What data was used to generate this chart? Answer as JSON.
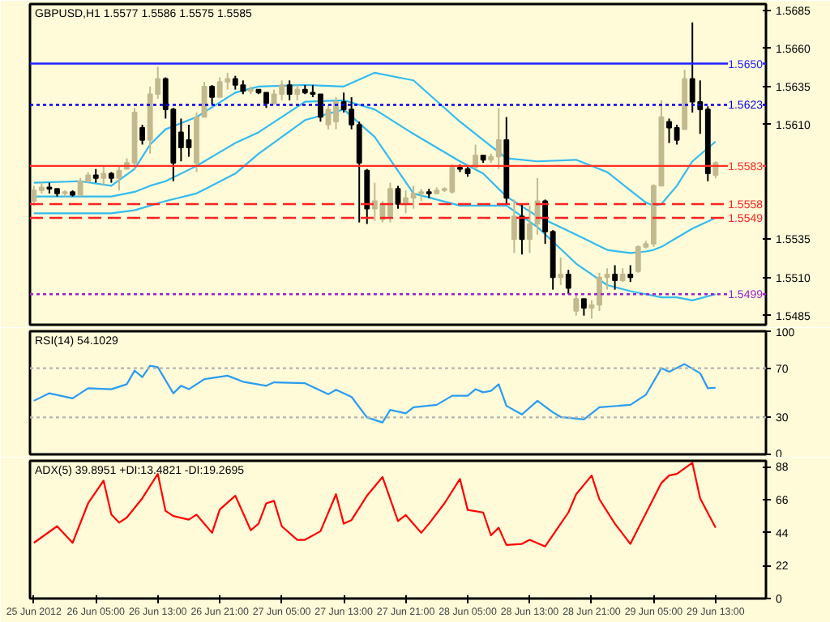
{
  "chart_data": [
    {
      "type": "candlestick",
      "title": "GBPUSD,H1 1.5577 1.5586 1.5575 1.5585",
      "grid": false,
      "tick_labels": "y",
      "x": [
        "2012-06-25T21:00",
        "2012-06-25T22:00",
        "2012-06-25T23:00",
        "2012-06-26T00:00",
        "2012-06-26T01:00",
        "2012-06-26T02:00",
        "2012-06-26T03:00",
        "2012-06-26T04:00",
        "2012-06-26T05:00",
        "2012-06-26T06:00",
        "2012-06-26T07:00",
        "2012-06-26T08:00",
        "2012-06-26T09:00",
        "2012-06-26T10:00",
        "2012-06-26T11:00",
        "2012-06-26T12:00",
        "2012-06-26T13:00",
        "2012-06-26T14:00",
        "2012-06-26T15:00",
        "2012-06-26T16:00",
        "2012-06-26T17:00",
        "2012-06-26T18:00",
        "2012-06-26T19:00",
        "2012-06-26T20:00",
        "2012-06-26T21:00",
        "2012-06-26T22:00",
        "2012-06-26T23:00",
        "2012-06-27T00:00",
        "2012-06-27T01:00",
        "2012-06-27T02:00",
        "2012-06-27T03:00",
        "2012-06-27T04:00",
        "2012-06-27T05:00",
        "2012-06-27T06:00",
        "2012-06-27T07:00",
        "2012-06-27T08:00",
        "2012-06-27T09:00",
        "2012-06-27T10:00",
        "2012-06-27T11:00",
        "2012-06-27T12:00",
        "2012-06-27T13:00",
        "2012-06-27T14:00",
        "2012-06-27T15:00",
        "2012-06-27T16:00",
        "2012-06-27T17:00",
        "2012-06-27T18:00",
        "2012-06-27T19:00",
        "2012-06-27T20:00",
        "2012-06-27T21:00",
        "2012-06-27T22:00",
        "2012-06-27T23:00",
        "2012-06-28T00:00",
        "2012-06-28T01:00",
        "2012-06-28T02:00",
        "2012-06-28T03:00",
        "2012-06-28T04:00",
        "2012-06-28T05:00",
        "2012-06-28T06:00",
        "2012-06-28T07:00",
        "2012-06-28T08:00",
        "2012-06-28T09:00",
        "2012-06-28T10:00",
        "2012-06-28T11:00",
        "2012-06-28T12:00",
        "2012-06-28T13:00",
        "2012-06-28T14:00",
        "2012-06-28T15:00",
        "2012-06-28T16:00",
        "2012-06-28T17:00",
        "2012-06-28T18:00",
        "2012-06-28T19:00",
        "2012-06-28T20:00",
        "2012-06-28T21:00",
        "2012-06-28T22:00",
        "2012-06-28T23:00",
        "2012-06-29T00:00",
        "2012-06-29T01:00",
        "2012-06-29T02:00",
        "2012-06-29T03:00",
        "2012-06-29T04:00",
        "2012-06-29T05:00",
        "2012-06-29T06:00",
        "2012-06-29T07:00",
        "2012-06-29T08:00",
        "2012-06-29T09:00",
        "2012-06-29T10:00",
        "2012-06-29T11:00",
        "2012-06-29T12:00",
        "2012-06-29T13:00"
      ],
      "ohlc": [
        [
          1.556,
          1.557,
          1.5557,
          1.5567
        ],
        [
          1.5567,
          1.5572,
          1.5565,
          1.5569
        ],
        [
          1.5569,
          1.5572,
          1.5565,
          1.5568
        ],
        [
          1.5568,
          1.5568,
          1.5563,
          1.5565
        ],
        [
          1.5565,
          1.5567,
          1.5563,
          1.5566
        ],
        [
          1.5566,
          1.5567,
          1.5563,
          1.5564
        ],
        [
          1.5564,
          1.5575,
          1.5563,
          1.5573
        ],
        [
          1.5573,
          1.5579,
          1.5572,
          1.5577
        ],
        [
          1.5577,
          1.5581,
          1.5572,
          1.5575
        ],
        [
          1.5575,
          1.5583,
          1.557,
          1.5578
        ],
        [
          1.5578,
          1.5579,
          1.5572,
          1.5575
        ],
        [
          1.5575,
          1.5583,
          1.5567,
          1.558
        ],
        [
          1.5581,
          1.5588,
          1.5581,
          1.5585
        ],
        [
          1.5585,
          1.5621,
          1.5581,
          1.5618
        ],
        [
          1.5608,
          1.561,
          1.5597,
          1.56
        ],
        [
          1.56,
          1.5635,
          1.5591,
          1.563
        ],
        [
          1.563,
          1.5648,
          1.5627,
          1.564
        ],
        [
          1.564,
          1.5641,
          1.5614,
          1.562
        ],
        [
          1.562,
          1.5621,
          1.5573,
          1.5585
        ],
        [
          1.5605,
          1.5614,
          1.5586,
          1.5595
        ],
        [
          1.56,
          1.561,
          1.5589,
          1.5595
        ],
        [
          1.5585,
          1.5618,
          1.5579,
          1.5615
        ],
        [
          1.5615,
          1.5638,
          1.5615,
          1.5635
        ],
        [
          1.5635,
          1.5636,
          1.5623,
          1.5628
        ],
        [
          1.5628,
          1.5641,
          1.5628,
          1.5638
        ],
        [
          1.5638,
          1.5644,
          1.5633,
          1.564
        ],
        [
          1.564,
          1.5642,
          1.5633,
          1.5636
        ],
        [
          1.5636,
          1.5639,
          1.563,
          1.5632
        ],
        [
          1.5632,
          1.5635,
          1.563,
          1.5633
        ],
        [
          1.5633,
          1.5633,
          1.563,
          1.5631
        ],
        [
          1.5631,
          1.5631,
          1.5621,
          1.5624
        ],
        [
          1.5624,
          1.5633,
          1.5623,
          1.563
        ],
        [
          1.563,
          1.5639,
          1.5626,
          1.5636
        ],
        [
          1.5636,
          1.5639,
          1.5626,
          1.563
        ],
        [
          1.563,
          1.5636,
          1.5626,
          1.5633
        ],
        [
          1.5633,
          1.5636,
          1.563,
          1.5631
        ],
        [
          1.5631,
          1.5636,
          1.5628,
          1.563
        ],
        [
          1.563,
          1.563,
          1.5612,
          1.5615
        ],
        [
          1.561,
          1.5623,
          1.5607,
          1.562
        ],
        [
          1.5612,
          1.5628,
          1.5607,
          1.5625
        ],
        [
          1.5625,
          1.5631,
          1.5618,
          1.562
        ],
        [
          1.562,
          1.5628,
          1.5607,
          1.561
        ],
        [
          1.561,
          1.5612,
          1.5546,
          1.5585
        ],
        [
          1.558,
          1.5581,
          1.5545,
          1.5555
        ],
        [
          1.5555,
          1.5572,
          1.5547,
          1.556
        ],
        [
          1.5548,
          1.556,
          1.5546,
          1.5558
        ],
        [
          1.555,
          1.5572,
          1.5546,
          1.5568
        ],
        [
          1.5568,
          1.557,
          1.5555,
          1.5558
        ],
        [
          1.5558,
          1.5567,
          1.5552,
          1.5562
        ],
        [
          1.5562,
          1.557,
          1.5555,
          1.5565
        ],
        [
          1.5565,
          1.5568,
          1.556,
          1.5566
        ],
        [
          1.5566,
          1.5568,
          1.5562,
          1.5565
        ],
        [
          1.5565,
          1.5569,
          1.5565,
          1.5567
        ],
        [
          1.5567,
          1.5569,
          1.5566,
          1.5568
        ],
        [
          1.5566,
          1.5584,
          1.5565,
          1.5582
        ],
        [
          1.5582,
          1.5584,
          1.5579,
          1.5581
        ],
        [
          1.5581,
          1.5583,
          1.5576,
          1.5578
        ],
        [
          1.5582,
          1.5597,
          1.5581,
          1.559
        ],
        [
          1.559,
          1.559,
          1.5585,
          1.5587
        ],
        [
          1.5587,
          1.5591,
          1.5585,
          1.5589
        ],
        [
          1.5589,
          1.5621,
          1.5581,
          1.56
        ],
        [
          1.56,
          1.5615,
          1.5558,
          1.5562
        ],
        [
          1.5535,
          1.5561,
          1.5526,
          1.555
        ],
        [
          1.555,
          1.5558,
          1.5525,
          1.5535
        ],
        [
          1.5535,
          1.5557,
          1.5526,
          1.5545
        ],
        [
          1.5545,
          1.5575,
          1.5538,
          1.556
        ],
        [
          1.556,
          1.5561,
          1.5532,
          1.554
        ],
        [
          1.554,
          1.5541,
          1.5502,
          1.551
        ],
        [
          1.551,
          1.5523,
          1.5505,
          1.5512
        ],
        [
          1.5512,
          1.5515,
          1.5499,
          1.5503
        ],
        [
          1.5488,
          1.5499,
          1.5485,
          1.5496
        ],
        [
          1.5496,
          1.5496,
          1.5485,
          1.549
        ],
        [
          1.549,
          1.5495,
          1.5483,
          1.5492
        ],
        [
          1.5492,
          1.5513,
          1.5488,
          1.551
        ],
        [
          1.551,
          1.5516,
          1.5502,
          1.5512
        ],
        [
          1.5512,
          1.5518,
          1.5502,
          1.5508
        ],
        [
          1.5508,
          1.5516,
          1.5507,
          1.5512
        ],
        [
          1.5512,
          1.5518,
          1.5507,
          1.551
        ],
        [
          1.5514,
          1.5531,
          1.5513,
          1.553
        ],
        [
          1.553,
          1.5534,
          1.5529,
          1.5532
        ],
        [
          1.5532,
          1.5571,
          1.553,
          1.557
        ],
        [
          1.557,
          1.5626,
          1.557,
          1.5615
        ],
        [
          1.5612,
          1.5614,
          1.5598,
          1.5608
        ],
        [
          1.5608,
          1.561,
          1.5597,
          1.56
        ],
        [
          1.5607,
          1.5646,
          1.5607,
          1.564
        ],
        [
          1.564,
          1.5677,
          1.5618,
          1.5625
        ],
        [
          1.5625,
          1.5639,
          1.5604,
          1.562
        ],
        [
          1.562,
          1.5622,
          1.5573,
          1.5578
        ],
        [
          1.5577,
          1.5586,
          1.5575,
          1.5585
        ]
      ],
      "colors": [
        "#c2b98f",
        "#c2b98f",
        "#000000",
        "#000000",
        "#c2b98f",
        "#000000",
        "#c2b98f",
        "#c2b98f",
        "#000000",
        "#c2b98f",
        "#000000",
        "#c2b98f",
        "#c2b98f",
        "#c2b98f",
        "#000000",
        "#c2b98f",
        "#c2b98f",
        "#000000",
        "#000000",
        "#000000",
        "#000000",
        "#c2b98f",
        "#c2b98f",
        "#000000",
        "#c2b98f",
        "#c2b98f",
        "#000000",
        "#000000",
        "#c2b98f",
        "#000000",
        "#000000",
        "#c2b98f",
        "#c2b98f",
        "#000000",
        "#c2b98f",
        "#000000",
        "#000000",
        "#000000",
        "#c2b98f",
        "#c2b98f",
        "#000000",
        "#000000",
        "#000000",
        "#000000",
        "#c2b98f",
        "#c2b98f",
        "#c2b98f",
        "#000000",
        "#c2b98f",
        "#c2b98f",
        "#c2b98f",
        "#000000",
        "#c2b98f",
        "#c2b98f",
        "#c2b98f",
        "#000000",
        "#000000",
        "#c2b98f",
        "#000000",
        "#c2b98f",
        "#c2b98f",
        "#000000",
        "#c2b98f",
        "#000000",
        "#c2b98f",
        "#c2b98f",
        "#000000",
        "#000000",
        "#c2b98f",
        "#000000",
        "#c2b98f",
        "#000000",
        "#c2b98f",
        "#c2b98f",
        "#c2b98f",
        "#000000",
        "#c2b98f",
        "#000000",
        "#c2b98f",
        "#c2b98f",
        "#c2b98f",
        "#c2b98f",
        "#000000",
        "#000000",
        "#c2b98f",
        "#000000",
        "#000000",
        "#000000",
        "#c2b98f"
      ],
      "series": [
        {
          "type": "line",
          "color": "#33bbee",
          "x": [
            "2012-06-25T21:00",
            "2012-06-26T03:00",
            "2012-06-26T07:00",
            "2012-06-26T10:00",
            "2012-06-26T12:00",
            "2012-06-26T14:00",
            "2012-06-26T18:00",
            "2012-06-26T23:00",
            "2012-06-27T02:00",
            "2012-06-27T08:00",
            "2012-06-27T13:00",
            "2012-06-27T17:00",
            "2012-06-27T22:00",
            "2012-06-28T04:00",
            "2012-06-28T07:00",
            "2012-06-28T10:00",
            "2012-06-28T14:00",
            "2012-06-28T19:00",
            "2012-06-28T23:00",
            "2012-06-29T02:00",
            "2012-06-29T04:00",
            "2012-06-29T05:00",
            "2012-06-29T06:00",
            "2012-06-29T08:00",
            "2012-06-29T10:00",
            "2012-06-29T13:00"
          ],
          "values": [
            1.5572,
            1.5573,
            1.557,
            1.5581,
            1.5597,
            1.5607,
            1.5615,
            1.5631,
            1.5635,
            1.5636,
            1.5635,
            1.5644,
            1.5639,
            1.5612,
            1.56,
            1.5588,
            1.5586,
            1.5587,
            1.5579,
            1.5567,
            1.5559,
            1.5557,
            1.5558,
            1.557,
            1.5586,
            1.5599
          ]
        },
        {
          "type": "line",
          "color": "#33bbee",
          "x": [
            "2012-06-25T21:00",
            "2012-06-26T03:00",
            "2012-06-26T07:00",
            "2012-06-26T10:00",
            "2012-06-26T12:00",
            "2012-06-26T14:00",
            "2012-06-26T18:00",
            "2012-06-26T23:00",
            "2012-06-27T02:00",
            "2012-06-27T08:00",
            "2012-06-27T13:00",
            "2012-06-27T17:00",
            "2012-06-27T22:00",
            "2012-06-28T04:00",
            "2012-06-28T07:00",
            "2012-06-28T10:00",
            "2012-06-28T14:00",
            "2012-06-28T19:00",
            "2012-06-28T23:00",
            "2012-06-29T02:00",
            "2012-06-29T04:00",
            "2012-06-29T05:00",
            "2012-06-29T06:00",
            "2012-06-29T08:00",
            "2012-06-29T10:00",
            "2012-06-29T13:00"
          ],
          "values": [
            1.5563,
            1.5563,
            1.5563,
            1.5566,
            1.557,
            1.5573,
            1.5583,
            1.5598,
            1.5605,
            1.5625,
            1.5626,
            1.562,
            1.5604,
            1.5586,
            1.5578,
            1.5563,
            1.555,
            1.5538,
            1.5528,
            1.5526,
            1.5527,
            1.5528,
            1.553,
            1.5536,
            1.5542,
            1.5549
          ]
        },
        {
          "type": "line",
          "color": "#33bbee",
          "x": [
            "2012-06-25T21:00",
            "2012-06-26T03:00",
            "2012-06-26T07:00",
            "2012-06-26T10:00",
            "2012-06-26T12:00",
            "2012-06-26T14:00",
            "2012-06-26T18:00",
            "2012-06-26T23:00",
            "2012-06-27T02:00",
            "2012-06-27T08:00",
            "2012-06-27T13:00",
            "2012-06-27T17:00",
            "2012-06-27T22:00",
            "2012-06-28T04:00",
            "2012-06-28T07:00",
            "2012-06-28T10:00",
            "2012-06-28T14:00",
            "2012-06-28T19:00",
            "2012-06-28T23:00",
            "2012-06-29T02:00",
            "2012-06-29T04:00",
            "2012-06-29T05:00",
            "2012-06-29T06:00",
            "2012-06-29T08:00",
            "2012-06-29T10:00",
            "2012-06-29T13:00"
          ],
          "values": [
            1.5552,
            1.5552,
            1.5552,
            1.5554,
            1.5557,
            1.556,
            1.5565,
            1.5578,
            1.5591,
            1.5613,
            1.562,
            1.5602,
            1.5565,
            1.5557,
            1.5557,
            1.5557,
            1.5543,
            1.5519,
            1.5505,
            1.5501,
            1.5499,
            1.5498,
            1.5497,
            1.5497,
            1.5495,
            1.5499
          ]
        }
      ],
      "xlim": [
        "2012-06-25T20:30",
        "2012-06-29T19:30"
      ],
      "ylim": [
        1.5479,
        1.5689
      ],
      "yticks": [
        1.5485,
        {
          "value": 1.551,
          "label": "1.5510"
        },
        1.5535,
        {
          "value": 1.561,
          "label": "1.5610"
        },
        1.5635,
        {
          "value": 1.566,
          "label": "1.5660"
        },
        1.5685
      ],
      "ref_lines": [
        {
          "axis": "y",
          "value": 1.565,
          "label": "1.5650",
          "color": "#2020ff",
          "line_style": "solid"
        },
        {
          "axis": "y",
          "value": 1.5623,
          "label": "1.5623",
          "color": "#0000ee",
          "line_style": "dotted"
        },
        {
          "axis": "y",
          "value": 1.5583,
          "label": "1.5583",
          "color": "#ff3020",
          "line_style": "solid"
        },
        {
          "axis": "y",
          "value": 1.5558,
          "label": "1.5558",
          "color": "#ff2020",
          "line_style": "dashed"
        },
        {
          "axis": "y",
          "value": 1.5549,
          "label": "1.5549",
          "color": "#ff2020",
          "line_style": "dashed"
        },
        {
          "axis": "y",
          "value": 1.5499,
          "label": "1.5499",
          "color": "#9922cc",
          "line_style": "dotted"
        }
      ]
    },
    {
      "type": "line",
      "title": "RSI(14) 54.1029",
      "grid": false,
      "tick_labels": "y",
      "series": [
        {
          "color": "#2b9cf0",
          "x": [
            "2012-06-25T21:00",
            "2012-06-25T23:00",
            "2012-06-26T02:00",
            "2012-06-26T04:00",
            "2012-06-26T07:00",
            "2012-06-26T09:00",
            "2012-06-26T10:00",
            "2012-06-26T11:00",
            "2012-06-26T12:00",
            "2012-06-26T13:00",
            "2012-06-26T15:00",
            "2012-06-26T16:00",
            "2012-06-26T17:00",
            "2012-06-26T19:00",
            "2012-06-26T22:00",
            "2012-06-27T00:00",
            "2012-06-27T03:00",
            "2012-06-27T04:00",
            "2012-06-27T08:00",
            "2012-06-27T11:00",
            "2012-06-27T12:00",
            "2012-06-27T14:00",
            "2012-06-27T16:00",
            "2012-06-27T18:00",
            "2012-06-27T19:00",
            "2012-06-27T21:00",
            "2012-06-27T22:00",
            "2012-06-28T01:00",
            "2012-06-28T03:00",
            "2012-06-28T05:00",
            "2012-06-28T06:00",
            "2012-06-28T07:00",
            "2012-06-28T08:00",
            "2012-06-28T09:00",
            "2012-06-28T10:00",
            "2012-06-28T12:00",
            "2012-06-28T14:00",
            "2012-06-28T16:00",
            "2012-06-28T17:00",
            "2012-06-28T20:00",
            "2012-06-28T22:00",
            "2012-06-29T02:00",
            "2012-06-29T04:00",
            "2012-06-29T06:00",
            "2012-06-29T07:00",
            "2012-06-29T09:00",
            "2012-06-29T11:00",
            "2012-06-29T12:00",
            "2012-06-29T13:00"
          ],
          "values": [
            43.5,
            49.6,
            45.5,
            53.7,
            52.9,
            57,
            68,
            62.7,
            72,
            70.8,
            49.6,
            55.7,
            52.9,
            61,
            63.9,
            59,
            55.7,
            58.5,
            57.8,
            48.8,
            52.5,
            46.7,
            30,
            25.9,
            36.1,
            33.3,
            38.2,
            40.2,
            47.6,
            47.6,
            52.9,
            50.4,
            51.6,
            56.9,
            39.4,
            32.4,
            43.5,
            34.1,
            30.4,
            28.4,
            38.2,
            40.2,
            48.4,
            70,
            67.1,
            73.3,
            65.9,
            53.7,
            54.1
          ]
        }
      ],
      "xlim": [
        "2012-06-25T20:30",
        "2012-06-29T19:30"
      ],
      "ylim": [
        0,
        100
      ],
      "yticks": [
        0,
        30,
        70,
        100
      ],
      "ref_lines": [
        {
          "axis": "y",
          "value": 30,
          "color": "#b4b4b4",
          "line_style": "dotted"
        },
        {
          "axis": "y",
          "value": 70,
          "color": "#b4b4b4",
          "line_style": "dotted"
        }
      ]
    },
    {
      "type": "line",
      "title": "ADX(5) 39.8951 +DI:13.4821 -DI:19.2695",
      "grid": false,
      "series": [
        {
          "color": "#ff0000",
          "x": [
            "2012-06-25T21:00",
            "2012-06-26T00:00",
            "2012-06-26T02:00",
            "2012-06-26T04:00",
            "2012-06-26T06:00",
            "2012-06-26T07:00",
            "2012-06-26T08:00",
            "2012-06-26T09:00",
            "2012-06-26T11:00",
            "2012-06-26T13:00",
            "2012-06-26T14:00",
            "2012-06-26T15:00",
            "2012-06-26T17:00",
            "2012-06-26T18:00",
            "2012-06-26T20:00",
            "2012-06-26T21:00",
            "2012-06-26T23:00",
            "2012-06-27T01:00",
            "2012-06-27T02:00",
            "2012-06-27T03:00",
            "2012-06-27T04:00",
            "2012-06-27T05:00",
            "2012-06-27T07:00",
            "2012-06-27T08:00",
            "2012-06-27T10:00",
            "2012-06-27T12:00",
            "2012-06-27T13:00",
            "2012-06-27T14:00",
            "2012-06-27T16:00",
            "2012-06-27T18:00",
            "2012-06-27T20:00",
            "2012-06-27T21:00",
            "2012-06-27T23:00",
            "2012-06-28T00:00",
            "2012-06-28T02:00",
            "2012-06-28T04:00",
            "2012-06-28T05:00",
            "2012-06-28T07:00",
            "2012-06-28T08:00",
            "2012-06-28T09:00",
            "2012-06-28T10:00",
            "2012-06-28T12:00",
            "2012-06-28T13:00",
            "2012-06-28T15:00",
            "2012-06-28T17:00",
            "2012-06-28T18:00",
            "2012-06-28T19:00",
            "2012-06-28T21:00",
            "2012-06-28T22:00",
            "2012-06-29T00:00",
            "2012-06-29T02:00",
            "2012-06-29T06:00",
            "2012-06-29T07:00",
            "2012-06-29T08:00",
            "2012-06-29T10:00",
            "2012-06-29T11:00",
            "2012-06-29T13:00"
          ],
          "values": [
            37.2,
            48.3,
            37.2,
            63.6,
            78.8,
            56.1,
            50.7,
            54.1,
            67,
            83.3,
            58.5,
            55.1,
            52.7,
            56.1,
            43.9,
            59.5,
            68.7,
            45.6,
            50,
            63.6,
            65.3,
            48.3,
            39.2,
            39.2,
            45,
            69.7,
            50,
            52.4,
            68.7,
            81.2,
            51.7,
            55.8,
            43.9,
            50,
            63.6,
            79.9,
            59.2,
            57.5,
            42.2,
            47.3,
            35.8,
            36.5,
            39.2,
            34.8,
            50,
            57.5,
            69.7,
            82.2,
            66.3,
            50,
            36.5,
            77.2,
            82.2,
            83.3,
            90.7,
            67,
            47.3
          ]
        }
      ],
      "xlim": [
        "2012-06-25T20:30",
        "2012-06-29T19:30"
      ],
      "ylim": [
        0,
        92
      ],
      "yticks": [
        0,
        22,
        44,
        66,
        88
      ],
      "xticks": [
        {
          "value": "2012-06-25T21:00",
          "label": "25 Jun 2012"
        },
        {
          "value": "2012-06-26T05:00",
          "label": "26 Jun 05:00"
        },
        {
          "value": "2012-06-26T13:00",
          "label": "26 Jun 13:00"
        },
        {
          "value": "2012-06-26T21:00",
          "label": "26 Jun 21:00"
        },
        {
          "value": "2012-06-27T05:00",
          "label": "27 Jun 05:00"
        },
        {
          "value": "2012-06-27T13:00",
          "label": "27 Jun 13:00"
        },
        {
          "value": "2012-06-27T21:00",
          "label": "27 Jun 21:00"
        },
        {
          "value": "2012-06-28T05:00",
          "label": "28 Jun 05:00"
        },
        {
          "value": "2012-06-28T13:00",
          "label": "28 Jun 13:00"
        },
        {
          "value": "2012-06-28T21:00",
          "label": "28 Jun 21:00"
        },
        {
          "value": "2012-06-29T05:00",
          "label": "29 Jun 05:00"
        },
        {
          "value": "2012-06-29T13:00",
          "label": "29 Jun 13:00"
        }
      ]
    }
  ]
}
